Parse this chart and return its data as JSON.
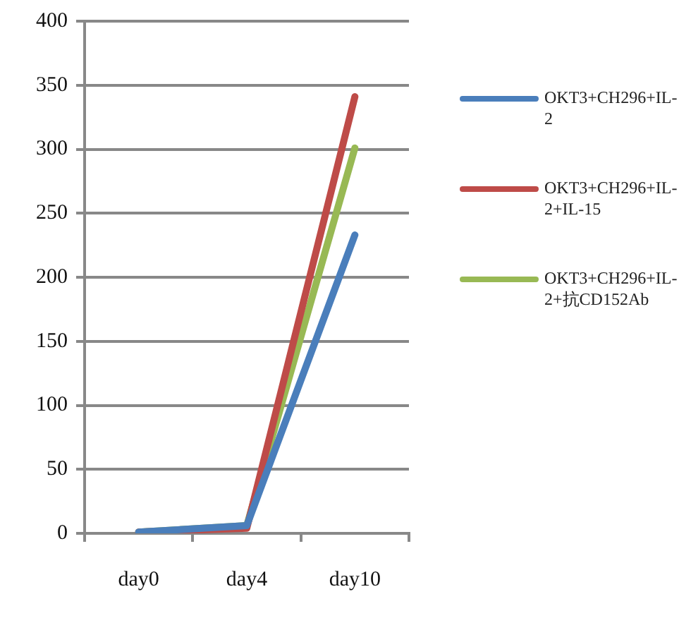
{
  "chart_data": {
    "type": "line",
    "categories": [
      "day0",
      "day4",
      "day10"
    ],
    "series": [
      {
        "name": "OKT3+CH296+IL-2",
        "color": "#4a7ebb",
        "values": [
          1,
          6,
          233
        ]
      },
      {
        "name": "OKT3+CH296+IL-2+IL-15",
        "color": "#be4b48",
        "values": [
          1,
          4,
          341
        ]
      },
      {
        "name": "OKT3+CH296+IL-2+抗CD152Ab",
        "color": "#98b954",
        "values": [
          1,
          6,
          301
        ]
      }
    ],
    "ylim": [
      0,
      400
    ],
    "yticks": [
      0,
      50,
      100,
      150,
      200,
      250,
      300,
      350,
      400
    ],
    "grid": "y",
    "legend": "right",
    "marker": "none",
    "line_style": "solid"
  }
}
